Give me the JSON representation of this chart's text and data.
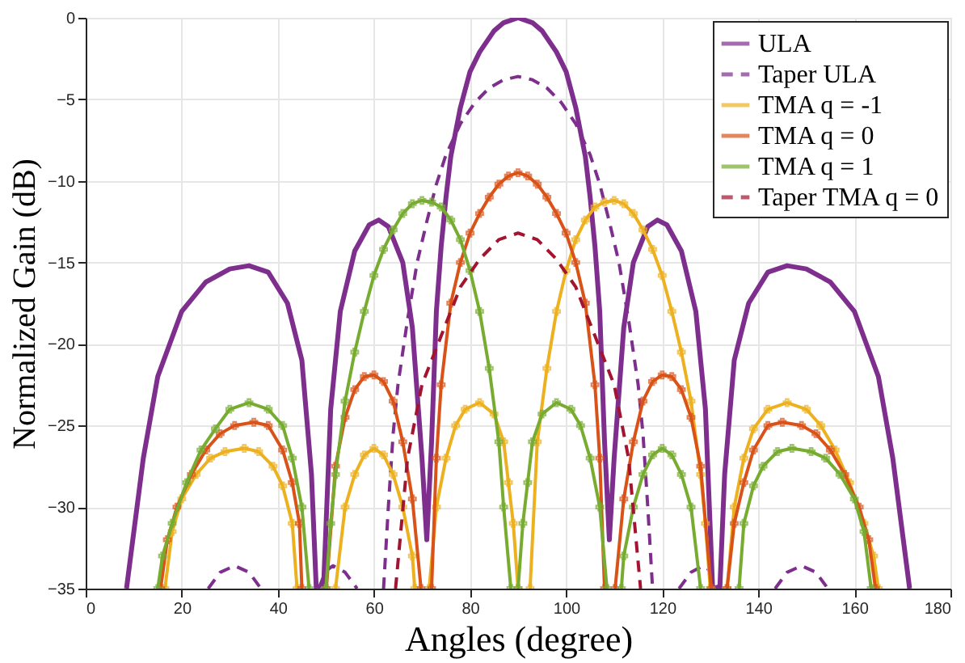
{
  "chart_data": {
    "type": "line",
    "xlabel": "Angles (degree)",
    "ylabel": "Normalized Gain (dB)",
    "xlim": [
      0,
      180
    ],
    "xticks": [
      0,
      20,
      40,
      60,
      80,
      100,
      120,
      140,
      160,
      180
    ],
    "ylim": [
      -35,
      0
    ],
    "yticks": [
      -35,
      -30,
      -25,
      -20,
      -15,
      -10,
      -5,
      0
    ],
    "grid": true,
    "legend": "top right",
    "series": [
      {
        "name": "ULA",
        "color": "#7e2f8e",
        "line_style": "solid",
        "marker": "none",
        "x": [
          8.5,
          12,
          15,
          20,
          25,
          30,
          34,
          38,
          42,
          45,
          47,
          48,
          48.5,
          49.5,
          51,
          53,
          56,
          59,
          61,
          63,
          66,
          68,
          70,
          71,
          72,
          73,
          74,
          75,
          76,
          78,
          80,
          82,
          85,
          87,
          90,
          93,
          95,
          98,
          100,
          102,
          104,
          105,
          106,
          107,
          108,
          109,
          110,
          112,
          114,
          117,
          119,
          121,
          124,
          127,
          129,
          130.5,
          131,
          132,
          133,
          135,
          138,
          142,
          146,
          150,
          155,
          160,
          165,
          168,
          171.5
        ],
        "values": [
          -35,
          -27,
          -22,
          -18,
          -16.2,
          -15.4,
          -15.2,
          -15.6,
          -17.5,
          -21,
          -28,
          -35,
          null,
          -35,
          -24,
          -18,
          -14.3,
          -12.7,
          -12.4,
          -12.8,
          -15,
          -19,
          -27,
          -32,
          -26,
          -18,
          -14,
          -11,
          -8.5,
          -5.5,
          -3.3,
          -2.1,
          -0.8,
          -0.3,
          0,
          -0.3,
          -0.8,
          -2.1,
          -3.3,
          -5.5,
          -8.5,
          -11,
          -14,
          -18,
          -26,
          -32,
          -27,
          -19,
          -15,
          -12.8,
          -12.4,
          -12.7,
          -14.3,
          -18,
          -24,
          -35,
          null,
          -35,
          -28,
          -21,
          -17.5,
          -15.6,
          -15.2,
          -15.4,
          -16.2,
          -18,
          -22,
          -27,
          -35
        ]
      },
      {
        "name": "Taper ULA",
        "color": "#7e2f8e",
        "line_style": "dashed",
        "marker": "none",
        "x": [
          25.5,
          28,
          31,
          34,
          36.5,
          37,
          48.5,
          50,
          51.5,
          54,
          56.5,
          57,
          62,
          63,
          64,
          65,
          67,
          69,
          71,
          73,
          75,
          78,
          81,
          84,
          87,
          90,
          93,
          96,
          99,
          102,
          105,
          107,
          109,
          111,
          113,
          115,
          116,
          117,
          118,
          119,
          123.5,
          126,
          128.5,
          130,
          131.5,
          132,
          143.5,
          146,
          149,
          152,
          154.5
        ],
        "values": [
          -35,
          -34,
          -33.6,
          -34,
          -35,
          null,
          -35,
          -33.9,
          -33.6,
          -34,
          -35,
          null,
          -35,
          -30,
          -25.5,
          -22.5,
          -18.5,
          -15,
          -12.5,
          -10.2,
          -8.4,
          -6.5,
          -5.2,
          -4.3,
          -3.8,
          -3.6,
          -3.8,
          -4.3,
          -5.2,
          -6.5,
          -8.4,
          -10.2,
          -12.5,
          -15,
          -18.5,
          -22.5,
          -25.5,
          -30,
          -35,
          null,
          -35,
          -34,
          -33.6,
          -33.9,
          -35,
          null,
          -35,
          -34,
          -33.6,
          -34,
          -35
        ]
      },
      {
        "name": "TMA  q = -1",
        "color": "#edb120",
        "line_style": "solid",
        "marker": "cross",
        "x": [
          16.5,
          18,
          20,
          23,
          26,
          29,
          33,
          36,
          39,
          41,
          43,
          44,
          48,
          52,
          54,
          56,
          58,
          60,
          62,
          64,
          66,
          68,
          68.5,
          70,
          71.5,
          73,
          75,
          77,
          79,
          82,
          85,
          87,
          88,
          89,
          90,
          91.5,
          92.5,
          94,
          96,
          98,
          100,
          102,
          104,
          106,
          108,
          110,
          112,
          114,
          116,
          118,
          120,
          122,
          124,
          126,
          128,
          129,
          130,
          132,
          133.5,
          135,
          137,
          139,
          142,
          146,
          150,
          153,
          156,
          159,
          162,
          164,
          165
        ],
        "values": [
          -35,
          -31.5,
          -29.5,
          -28,
          -27,
          -26.6,
          -26.4,
          -26.6,
          -27.5,
          -28.7,
          -31,
          -35,
          null,
          -35,
          -30,
          -28,
          -26.8,
          -26.4,
          -26.8,
          -28,
          -30,
          -33,
          -35,
          null,
          -35,
          -30,
          -27,
          -25,
          -24,
          -23.6,
          -24.3,
          -26,
          -28.5,
          -31,
          -35,
          null,
          -35,
          -26,
          -21.5,
          -18,
          -15.5,
          -13.6,
          -12.4,
          -11.6,
          -11.3,
          -11.2,
          -11.4,
          -12,
          -13,
          -14.2,
          -15.8,
          -18,
          -20.5,
          -23.5,
          -28,
          -31,
          -35,
          null,
          -35,
          -30,
          -27,
          -25.2,
          -24,
          -23.6,
          -24,
          -25,
          -26.5,
          -28.5,
          -31,
          -33,
          -35
        ]
      },
      {
        "name": "TMA  q = 0",
        "color": "#d95319",
        "line_style": "solid",
        "marker": "cross",
        "x": [
          15.6,
          17,
          19,
          22,
          25,
          28,
          31,
          35,
          38,
          41,
          43,
          44.5,
          45,
          47,
          50.1,
          52,
          54,
          56,
          58,
          60,
          62,
          64,
          66,
          68,
          69.8,
          71,
          72,
          73,
          74,
          76,
          78,
          80,
          82,
          84,
          86,
          88,
          90,
          92,
          94,
          96,
          98,
          100,
          102,
          104,
          106,
          107,
          108,
          109,
          110.2,
          112,
          114,
          116,
          118,
          120,
          122,
          124,
          126,
          128,
          130.2,
          132,
          133.5,
          135,
          137,
          139,
          142,
          145,
          149,
          152,
          155,
          158,
          161,
          163,
          164.4
        ],
        "values": [
          -35,
          -32,
          -30,
          -28,
          -26.5,
          -25.5,
          -25,
          -24.8,
          -25,
          -26.5,
          -28.5,
          -31,
          -35,
          null,
          -35,
          -27.5,
          -24.5,
          -22.8,
          -22,
          -21.9,
          -22.3,
          -23.5,
          -26,
          -29.5,
          -35,
          null,
          -35,
          -27,
          -22.5,
          -17.5,
          -15,
          -13.2,
          -12,
          -11,
          -10.2,
          -9.7,
          -9.5,
          -9.7,
          -10.2,
          -11,
          -12,
          -13.2,
          -15,
          -17.5,
          -22.5,
          -27,
          -35,
          null,
          -35,
          -29.5,
          -26,
          -23.5,
          -22.3,
          -21.9,
          -22,
          -22.8,
          -24.5,
          -27.5,
          -35,
          null,
          -35,
          -31,
          -28.5,
          -26.5,
          -25,
          -24.8,
          -25,
          -25.5,
          -26.5,
          -28,
          -30,
          -32,
          -35
        ]
      },
      {
        "name": "TMA  q = 1",
        "color": "#77ac30",
        "line_style": "solid",
        "marker": "cross",
        "x": [
          15,
          16,
          18,
          21,
          24,
          27,
          30,
          34,
          38,
          41,
          43,
          45,
          46.5,
          48,
          50,
          51,
          52,
          54,
          56,
          58,
          60,
          62,
          64,
          66,
          68,
          70,
          72,
          74,
          76,
          78,
          80,
          82,
          84,
          86,
          87,
          88.5,
          89.2,
          90,
          91,
          92,
          93,
          95,
          98,
          101,
          103,
          105,
          107,
          108.5,
          110,
          111.5,
          112,
          114,
          116,
          118,
          120,
          122,
          124,
          126,
          128,
          132,
          136,
          137,
          139,
          141,
          144,
          147,
          151,
          154,
          157,
          160,
          162,
          163.5
        ],
        "values": [
          -35,
          -33,
          -31,
          -28.5,
          -26.5,
          -25.2,
          -24,
          -23.6,
          -24,
          -25,
          -27,
          -30,
          -35,
          null,
          -35,
          -31,
          -28,
          -23.5,
          -20.5,
          -18,
          -15.8,
          -14.2,
          -13,
          -12,
          -11.4,
          -11.2,
          -11.3,
          -11.6,
          -12.4,
          -13.6,
          -15.5,
          -18,
          -21.5,
          -26,
          -30,
          -35,
          null,
          -35,
          -31,
          -28.5,
          -26,
          -24.3,
          -23.6,
          -24,
          -25,
          -27,
          -30,
          -35,
          null,
          -35,
          -33,
          -30,
          -28,
          -26.8,
          -26.4,
          -26.8,
          -28,
          -30,
          -35,
          null,
          -35,
          -31,
          -28.7,
          -27.5,
          -26.6,
          -26.4,
          -26.6,
          -27,
          -28,
          -29.5,
          -31.5,
          -35
        ]
      },
      {
        "name": "Taper TMA q = 0",
        "color": "#a2142f",
        "line_style": "dashed",
        "marker": "none",
        "x": [
          64.5,
          67,
          70,
          74,
          78,
          82,
          86,
          90,
          94,
          98,
          102,
          106,
          110,
          113,
          115.5
        ],
        "values": [
          -35,
          -27,
          -22.5,
          -19.5,
          -16.5,
          -14.8,
          -13.6,
          -13.2,
          -13.6,
          -14.8,
          -16.5,
          -19.5,
          -22.5,
          -27,
          -35
        ]
      }
    ]
  }
}
